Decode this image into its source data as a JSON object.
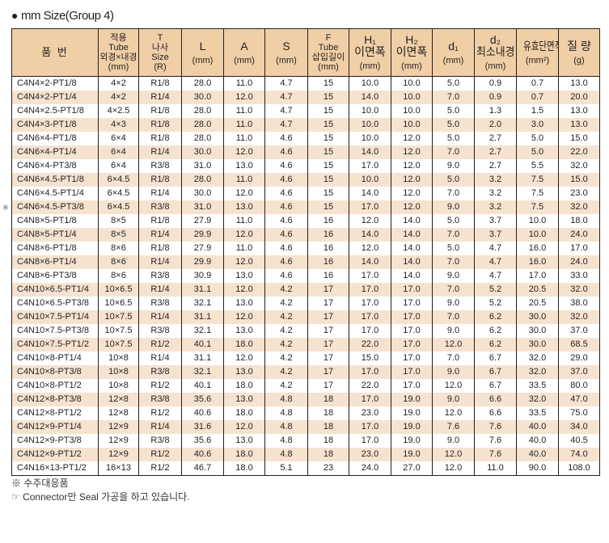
{
  "title": "mm Size(Group 4)",
  "headers": [
    {
      "top": "품 번",
      "unit": ""
    },
    {
      "top": "적용\nTube\n외경×내경",
      "unit": "(mm)"
    },
    {
      "top": "T\n나사\nSize",
      "unit": "(R)"
    },
    {
      "top": "L",
      "unit": "(mm)"
    },
    {
      "top": "A",
      "unit": "(mm)"
    },
    {
      "top": "S",
      "unit": "(mm)"
    },
    {
      "top": "F\nTube\n삽입길이",
      "unit": "(mm)"
    },
    {
      "top": "H₁\n이면폭",
      "unit": "(mm)"
    },
    {
      "top": "H₂\n이면폭",
      "unit": "(mm)"
    },
    {
      "top": "d₁",
      "unit": "(mm)"
    },
    {
      "top": "d₂\n최소내경",
      "unit": "(mm)"
    },
    {
      "top": "유효단면적",
      "unit": "(mm²)"
    },
    {
      "top": "질 량",
      "unit": "(g)"
    }
  ],
  "marked_row": "C4N6×4.5-PT3/8",
  "marker": "※",
  "rows": [
    [
      "C4N4×2-PT1/8",
      "4×2",
      "R1/8",
      "28.0",
      "11.0",
      "4.7",
      "15",
      "10.0",
      "10.0",
      "5.0",
      "0.9",
      "0.7",
      "13.0"
    ],
    [
      "C4N4×2-PT1/4",
      "4×2",
      "R1/4",
      "30.0",
      "12.0",
      "4.7",
      "15",
      "14.0",
      "10.0",
      "7.0",
      "0.9",
      "0.7",
      "20.0"
    ],
    [
      "C4N4×2.5-PT1/8",
      "4×2.5",
      "R1/8",
      "28.0",
      "11.0",
      "4.7",
      "15",
      "10.0",
      "10.0",
      "5.0",
      "1.3",
      "1.5",
      "13.0"
    ],
    [
      "C4N4×3-PT1/8",
      "4×3",
      "R1/8",
      "28.0",
      "11.0",
      "4.7",
      "15",
      "10.0",
      "10.0",
      "5.0",
      "2.0",
      "3.0",
      "13.0"
    ],
    [
      "C4N6×4-PT1/8",
      "6×4",
      "R1/8",
      "28.0",
      "11.0",
      "4.6",
      "15",
      "10.0",
      "12.0",
      "5.0",
      "2.7",
      "5.0",
      "15.0"
    ],
    [
      "C4N6×4-PT1/4",
      "6×4",
      "R1/4",
      "30.0",
      "12.0",
      "4.6",
      "15",
      "14.0",
      "12.0",
      "7.0",
      "2.7",
      "5.0",
      "22.0"
    ],
    [
      "C4N6×4-PT3/8",
      "6×4",
      "R3/8",
      "31.0",
      "13.0",
      "4.6",
      "15",
      "17.0",
      "12.0",
      "9.0",
      "2.7",
      "5.5",
      "32.0"
    ],
    [
      "C4N6×4.5-PT1/8",
      "6×4.5",
      "R1/8",
      "28.0",
      "11.0",
      "4.6",
      "15",
      "10.0",
      "12.0",
      "5.0",
      "3.2",
      "7.5",
      "15.0"
    ],
    [
      "C4N6×4.5-PT1/4",
      "6×4.5",
      "R1/4",
      "30.0",
      "12.0",
      "4.6",
      "15",
      "14.0",
      "12.0",
      "7.0",
      "3.2",
      "7.5",
      "23.0"
    ],
    [
      "C4N6×4.5-PT3/8",
      "6×4.5",
      "R3/8",
      "31.0",
      "13.0",
      "4.6",
      "15",
      "17.0",
      "12.0",
      "9.0",
      "3.2",
      "7.5",
      "32.0"
    ],
    [
      "C4N8×5-PT1/8",
      "8×5",
      "R1/8",
      "27.9",
      "11.0",
      "4.6",
      "16",
      "12.0",
      "14.0",
      "5.0",
      "3.7",
      "10.0",
      "18.0"
    ],
    [
      "C4N8×5-PT1/4",
      "8×5",
      "R1/4",
      "29.9",
      "12.0",
      "4.6",
      "16",
      "14.0",
      "14.0",
      "7.0",
      "3.7",
      "10.0",
      "24.0"
    ],
    [
      "C4N8×6-PT1/8",
      "8×6",
      "R1/8",
      "27.9",
      "11.0",
      "4.6",
      "16",
      "12.0",
      "14.0",
      "5.0",
      "4.7",
      "16.0",
      "17.0"
    ],
    [
      "C4N8×6-PT1/4",
      "8×6",
      "R1/4",
      "29.9",
      "12.0",
      "4.6",
      "16",
      "14.0",
      "14.0",
      "7.0",
      "4.7",
      "16.0",
      "24.0"
    ],
    [
      "C4N8×6-PT3/8",
      "8×6",
      "R3/8",
      "30.9",
      "13.0",
      "4.6",
      "16",
      "17.0",
      "14.0",
      "9.0",
      "4.7",
      "17.0",
      "33.0"
    ],
    [
      "C4N10×6.5-PT1/4",
      "10×6.5",
      "R1/4",
      "31.1",
      "12.0",
      "4.2",
      "17",
      "17.0",
      "17.0",
      "7.0",
      "5.2",
      "20.5",
      "32.0"
    ],
    [
      "C4N10×6.5-PT3/8",
      "10×6.5",
      "R3/8",
      "32.1",
      "13.0",
      "4.2",
      "17",
      "17.0",
      "17.0",
      "9.0",
      "5.2",
      "20.5",
      "38.0"
    ],
    [
      "C4N10×7.5-PT1/4",
      "10×7.5",
      "R1/4",
      "31.1",
      "12.0",
      "4.2",
      "17",
      "17.0",
      "17.0",
      "7.0",
      "6.2",
      "30.0",
      "32.0"
    ],
    [
      "C4N10×7.5-PT3/8",
      "10×7.5",
      "R3/8",
      "32.1",
      "13.0",
      "4.2",
      "17",
      "17.0",
      "17.0",
      "9.0",
      "6.2",
      "30.0",
      "37.0"
    ],
    [
      "C4N10×7.5-PT1/2",
      "10×7.5",
      "R1/2",
      "40.1",
      "18.0",
      "4.2",
      "17",
      "22.0",
      "17.0",
      "12.0",
      "6.2",
      "30.0",
      "68.5"
    ],
    [
      "C4N10×8-PT1/4",
      "10×8",
      "R1/4",
      "31.1",
      "12.0",
      "4.2",
      "17",
      "15.0",
      "17.0",
      "7.0",
      "6.7",
      "32.0",
      "29.0"
    ],
    [
      "C4N10×8-PT3/8",
      "10×8",
      "R3/8",
      "32.1",
      "13.0",
      "4.2",
      "17",
      "17.0",
      "17.0",
      "9.0",
      "6.7",
      "32.0",
      "37.0"
    ],
    [
      "C4N10×8-PT1/2",
      "10×8",
      "R1/2",
      "40.1",
      "18.0",
      "4.2",
      "17",
      "22.0",
      "17.0",
      "12.0",
      "6.7",
      "33.5",
      "80.0"
    ],
    [
      "C4N12×8-PT3/8",
      "12×8",
      "R3/8",
      "35.6",
      "13.0",
      "4.8",
      "18",
      "17.0",
      "19.0",
      "9.0",
      "6.6",
      "32.0",
      "47.0"
    ],
    [
      "C4N12×8-PT1/2",
      "12×8",
      "R1/2",
      "40.6",
      "18.0",
      "4.8",
      "18",
      "23.0",
      "19.0",
      "12.0",
      "6.6",
      "33.5",
      "75.0"
    ],
    [
      "C4N12×9-PT1/4",
      "12×9",
      "R1/4",
      "31.6",
      "12.0",
      "4.8",
      "18",
      "17.0",
      "19.0",
      "7.6",
      "7.6",
      "40.0",
      "34.0"
    ],
    [
      "C4N12×9-PT3/8",
      "12×9",
      "R3/8",
      "35.6",
      "13.0",
      "4.8",
      "18",
      "17.0",
      "19.0",
      "9.0",
      "7.6",
      "40.0",
      "40.5"
    ],
    [
      "C4N12×9-PT1/2",
      "12×9",
      "R1/2",
      "40.6",
      "18.0",
      "4.8",
      "18",
      "23.0",
      "19.0",
      "12.0",
      "7.6",
      "40.0",
      "74.0"
    ],
    [
      "C4N16×13-PT1/2",
      "16×13",
      "R1/2",
      "46.7",
      "18.0",
      "5.1",
      "23",
      "24.0",
      "27.0",
      "12.0",
      "11.0",
      "90.0",
      "108.0"
    ]
  ],
  "notes": [
    "※ 수주대응품",
    "☞ Connector만 Seal 가공을 하고 있습니다."
  ],
  "colors": {
    "header_bg": "#f0cfa6",
    "alt_row_bg": "#f6e3cf"
  }
}
